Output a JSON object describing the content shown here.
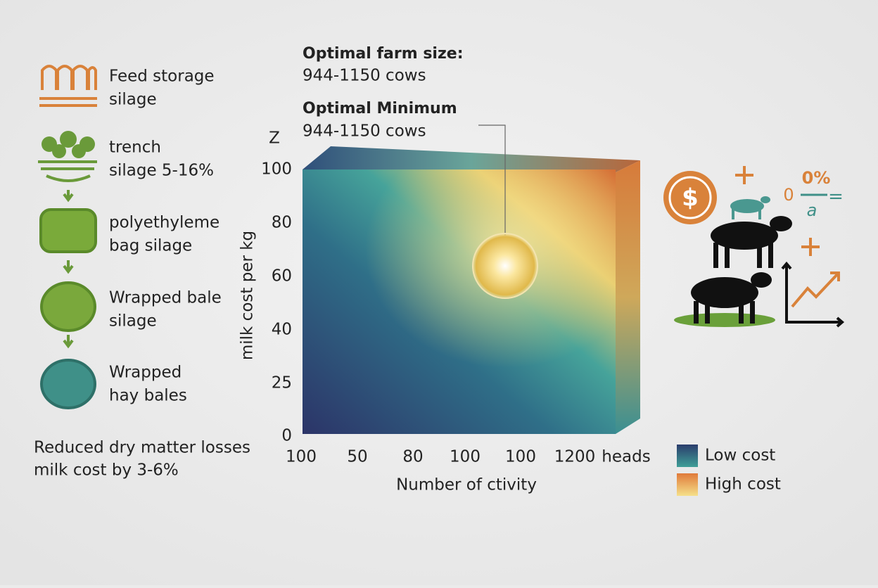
{
  "steps": [
    {
      "lines": [
        "Feed storage",
        "silage"
      ]
    },
    {
      "lines": [
        "trench",
        "silage 5-16%"
      ]
    },
    {
      "lines": [
        "polyethyleme",
        "bag silage"
      ]
    },
    {
      "lines": [
        "Wrapped bale",
        "silage"
      ]
    },
    {
      "lines": [
        "Wrapped",
        "hay bales"
      ]
    }
  ],
  "note": [
    "Reduced dry matter losses",
    "milk cost by 3-6%"
  ],
  "annotations": [
    {
      "title": "Optimal farm size:",
      "text": "944-1150 cows"
    },
    {
      "title": "Optimal Minimum",
      "text": "944-1150 cows"
    }
  ],
  "plot": {
    "z_label": "Z",
    "y_label": "milk cost per kg",
    "y_ticks": [
      "100",
      "80",
      "60",
      "40",
      "25",
      "0"
    ],
    "x_ticks": [
      "100",
      "50",
      "80",
      "100",
      "100",
      "1200"
    ],
    "x_unit": "heads",
    "x_label": "Number of ctivity"
  },
  "legend": [
    "Low cost",
    "High cost"
  ],
  "icon_text": {
    "dollar": "$",
    "percent": "0%",
    "zero": "0",
    "denominator": "a",
    "equals": "="
  }
}
